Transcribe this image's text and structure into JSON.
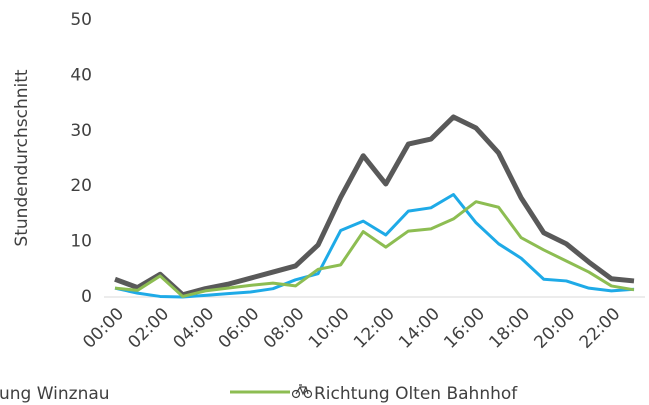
{
  "chart_data": {
    "type": "line",
    "y_label": "Stundendurchschnitt",
    "categories": [
      "00:00",
      null,
      "02:00",
      null,
      "04:00",
      null,
      "06:00",
      null,
      "08:00",
      null,
      "10:00",
      null,
      "12:00",
      null,
      "14:00",
      null,
      "16:00",
      null,
      "18:00",
      null,
      "20:00",
      null,
      "22:00",
      null
    ],
    "series": [
      {
        "color": "#595959",
        "values": [
          3.2,
          1.7,
          4.1,
          0.4,
          1.5,
          2.3,
          3.4,
          4.5,
          5.6,
          9.4,
          18,
          25.5,
          20.4,
          27.6,
          28.5,
          32.5,
          30.5,
          26,
          17.9,
          11.6,
          9.6,
          6.3,
          3.3,
          2.9
        ]
      },
      {
        "name": "ung Winznau",
        "color": "#1eaae7",
        "values": [
          1.6,
          0.7,
          0.1,
          0,
          0.3,
          0.6,
          0.9,
          1.5,
          3.1,
          4.2,
          12,
          13.7,
          11.2,
          15.5,
          16.1,
          18.5,
          13.4,
          9.6,
          7,
          3.2,
          2.9,
          1.6,
          1.1,
          1.4
        ]
      },
      {
        "name": "Richtung Olten Bahnhof",
        "color": "#8dbd52",
        "values": [
          1.6,
          1.2,
          3.8,
          0.1,
          1.1,
          1.6,
          2.1,
          2.5,
          2,
          5,
          5.8,
          11.8,
          9,
          11.9,
          12.3,
          14.1,
          17.2,
          16.2,
          10.7,
          8.5,
          6.5,
          4.5,
          2,
          1.3
        ]
      }
    ],
    "ylim": [
      0,
      50
    ],
    "yticks": [
      0,
      10,
      20,
      30,
      40,
      50
    ],
    "grid": false
  }
}
